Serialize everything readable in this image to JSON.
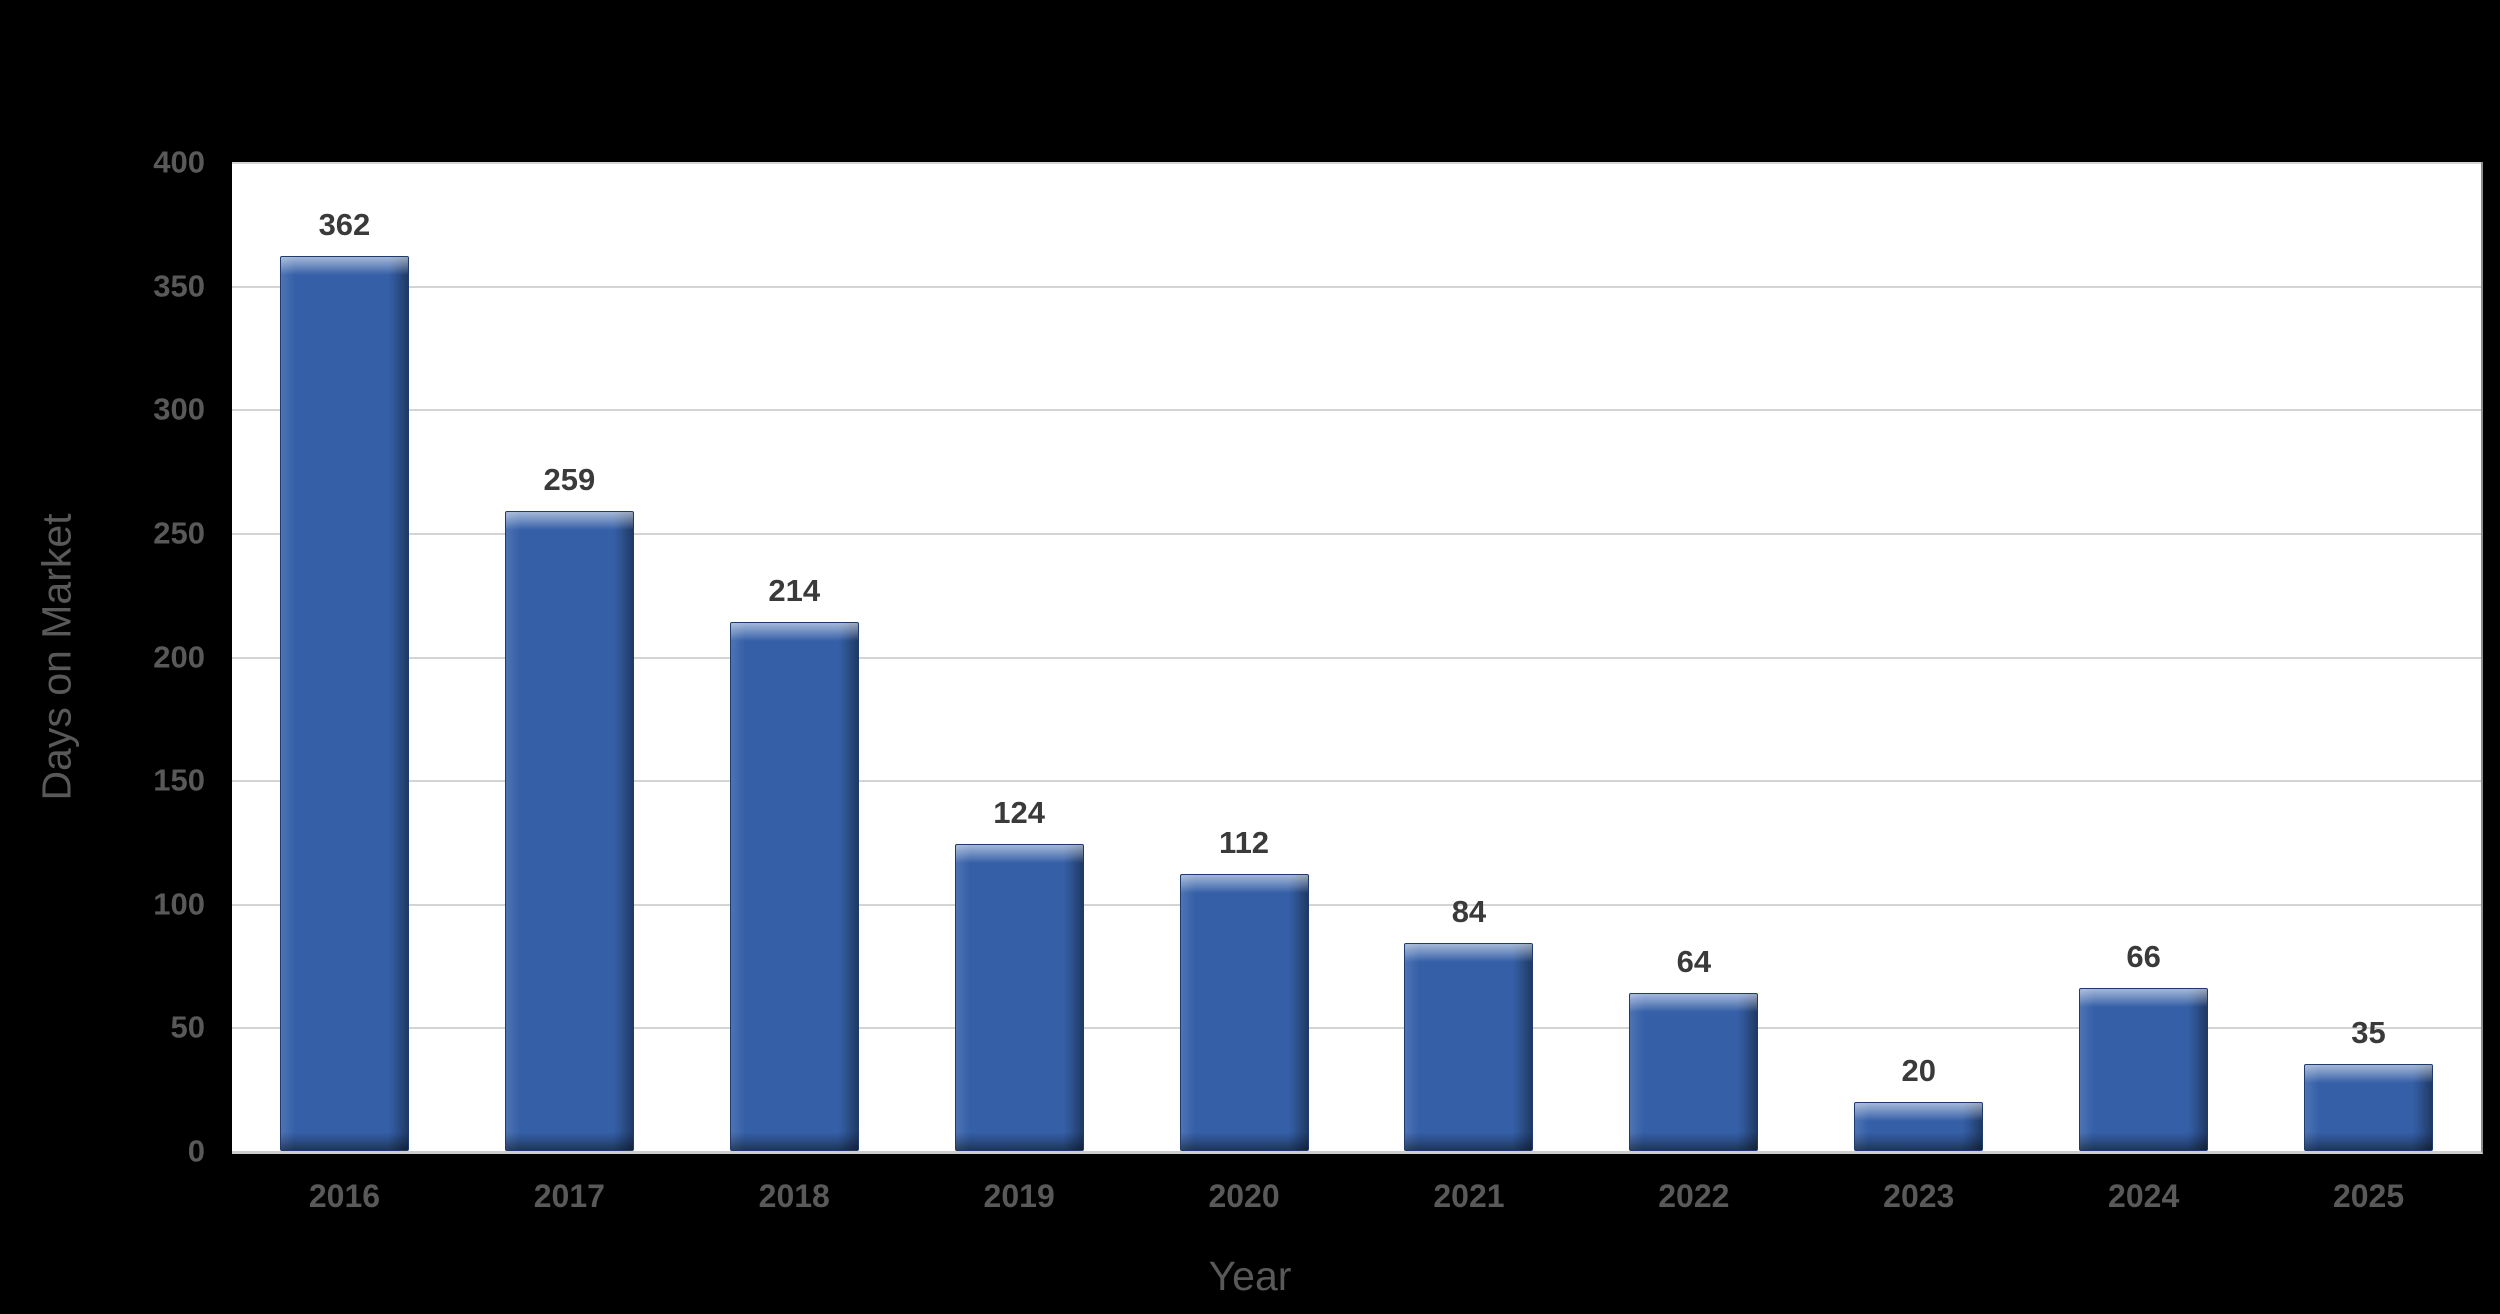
{
  "page": {
    "background_color": "#000000",
    "plot_background_color": "#FFFFFF"
  },
  "chart_data": {
    "type": "bar",
    "title": "",
    "categories": [
      "2016",
      "2017",
      "2018",
      "2019",
      "2020",
      "2021",
      "2022",
      "2023",
      "2024",
      "2025"
    ],
    "values": [
      362,
      259,
      214,
      124,
      112,
      84,
      64,
      20,
      66,
      35
    ],
    "xlabel": "Year",
    "ylabel": "Days on Market",
    "ylim": [
      0,
      400
    ],
    "yticks": [
      0,
      50,
      100,
      150,
      200,
      250,
      300,
      350,
      400
    ],
    "grid": "horizontal",
    "legend_position": "none",
    "data_labels": "above-bars",
    "bar_fill_color": "#3560A8",
    "bar_border_color": "#1E3B6E",
    "bar_highlight_color": "#8FB0E0",
    "data_label_color": "#3A3A3A",
    "tick_label_color": "#595959",
    "axis_title_color": "#595959",
    "gridline_color": "#D4D4D4",
    "axis_line_color": "#CDCDCD"
  }
}
